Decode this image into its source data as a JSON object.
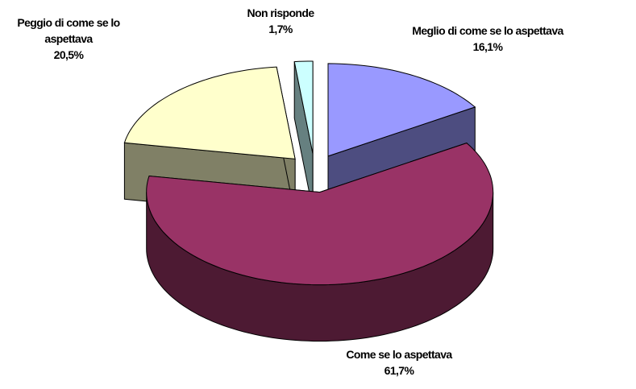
{
  "chart_data": {
    "type": "pie3d",
    "categories": [
      "Meglio di come se lo aspettava",
      "Come se lo aspettava",
      "Peggio di come se lo aspettava",
      "Non risponde"
    ],
    "values": [
      16.1,
      61.7,
      20.5,
      1.7
    ],
    "value_labels": [
      "16,1%",
      "61,7%",
      "20,5%",
      "1,7%"
    ],
    "colors": [
      "#9999ff",
      "#993366",
      "#ffffcc",
      "#ccffff"
    ]
  }
}
